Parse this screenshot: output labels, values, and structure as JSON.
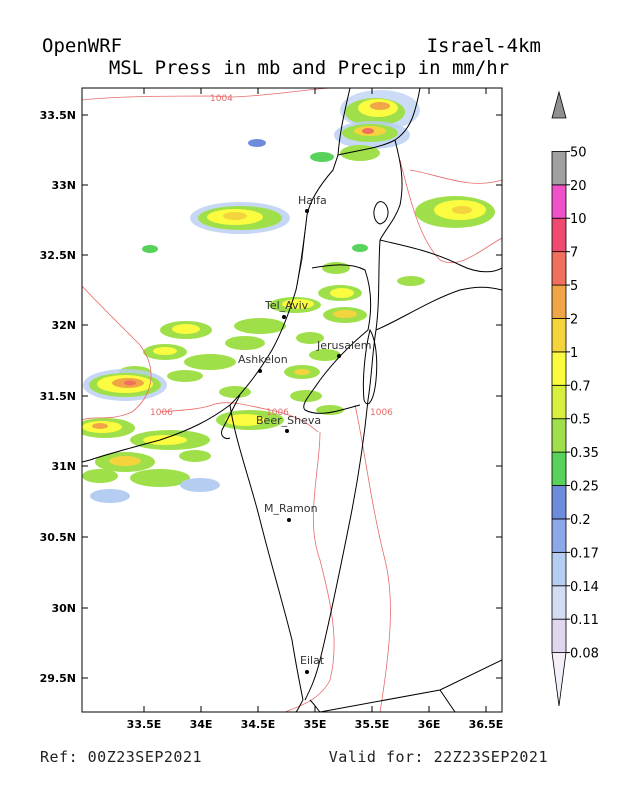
{
  "header": {
    "model": "OpenWRF",
    "domain": "Israel-4km",
    "subtitle": "MSL Press in mb and Precip in mm/hr"
  },
  "footer": {
    "ref": "Ref: 00Z23SEP2021",
    "valid": "Valid for: 22Z23SEP2021"
  },
  "map": {
    "x_ticks": [
      "33.5E",
      "34E",
      "34.5E",
      "35E",
      "35.5E",
      "36E",
      "36.5E"
    ],
    "y_ticks": [
      "33.5N",
      "33N",
      "32.5N",
      "32N",
      "31.5N",
      "31N",
      "30.5N",
      "30N",
      "29.5N"
    ],
    "cities": [
      {
        "name": "Haifa",
        "lon": 34.99,
        "lat": 32.79
      },
      {
        "name": "Tel_Aviv",
        "lon": 34.78,
        "lat": 32.07
      },
      {
        "name": "Jerusalem",
        "lon": 35.22,
        "lat": 31.77
      },
      {
        "name": "Ashkelon",
        "lon": 34.57,
        "lat": 31.67
      },
      {
        "name": "Beer_Sheva",
        "lon": 34.79,
        "lat": 31.25
      },
      {
        "name": "M_Ramon",
        "lon": 34.8,
        "lat": 30.61
      },
      {
        "name": "Eilat",
        "lon": 34.95,
        "lat": 29.56
      }
    ],
    "contour_labels": [
      {
        "text": "1004"
      },
      {
        "text": "1006"
      },
      {
        "text": "1006"
      },
      {
        "text": "1006"
      }
    ]
  },
  "colorbar": {
    "levels": [
      "0.08",
      "0.11",
      "0.14",
      "0.17",
      "0.2",
      "0.25",
      "0.35",
      "0.5",
      "0.7",
      "1",
      "2",
      "5",
      "7",
      "10",
      "20",
      "50"
    ],
    "colors": [
      "#f4eef8",
      "#e2d6ee",
      "#d2dcf2",
      "#b6cdf2",
      "#8ca8ea",
      "#6e8cdc",
      "#58d25a",
      "#9fe04a",
      "#d8ef3c",
      "#fbfb40",
      "#f4d43c",
      "#f0a646",
      "#f07060",
      "#f04a70",
      "#f050c8",
      "#a0a0a0",
      "#909090"
    ]
  },
  "colors": {
    "border": "#000000",
    "isobar": "#e86a6a"
  }
}
